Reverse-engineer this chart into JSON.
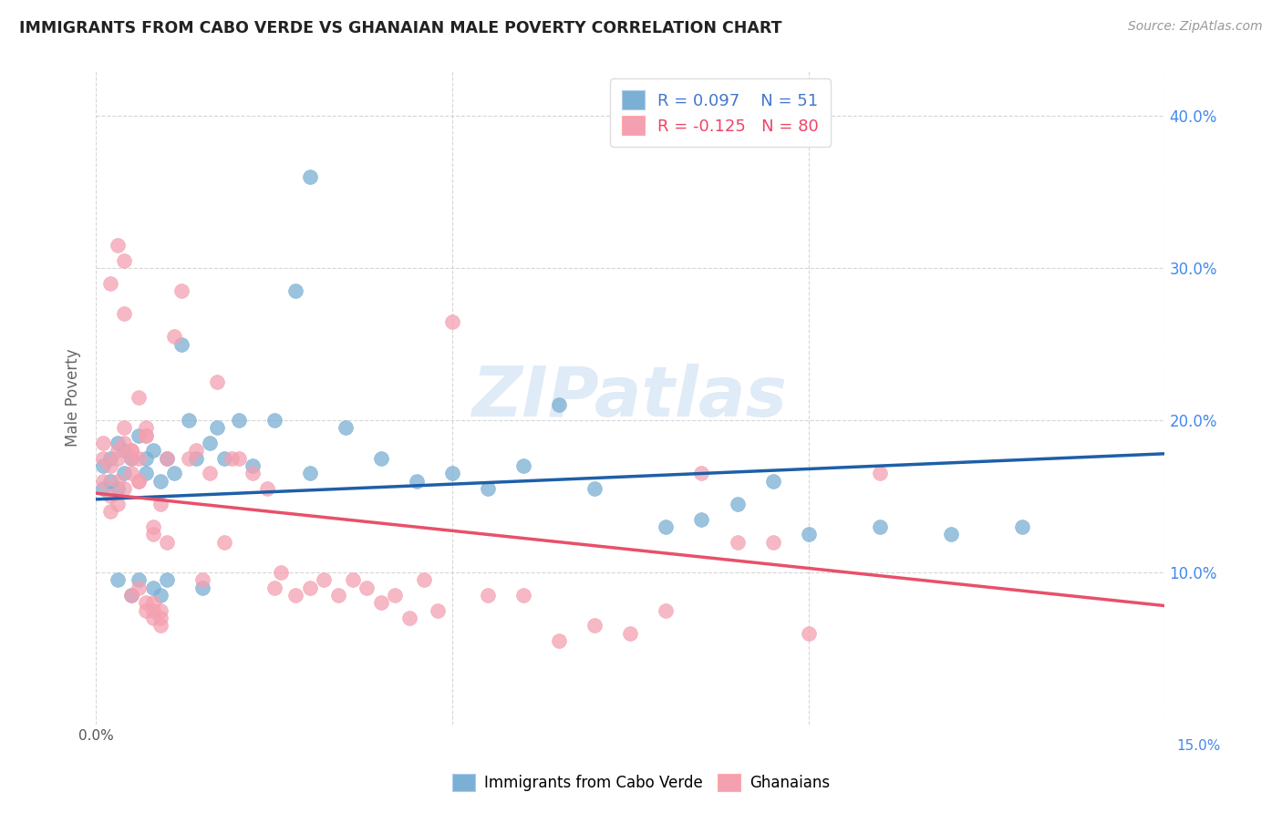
{
  "title": "IMMIGRANTS FROM CABO VERDE VS GHANAIAN MALE POVERTY CORRELATION CHART",
  "source": "Source: ZipAtlas.com",
  "ylabel": "Male Poverty",
  "xlim": [
    0.0,
    0.15
  ],
  "ylim": [
    0.0,
    0.43
  ],
  "R_blue": 0.097,
  "N_blue": 51,
  "R_pink": -0.125,
  "N_pink": 80,
  "color_blue": "#7BAFD4",
  "color_pink": "#F4A0B0",
  "line_color_blue": "#1E5FA8",
  "line_color_pink": "#E8506A",
  "legend_label_blue": "Immigrants from Cabo Verde",
  "legend_label_pink": "Ghanaians",
  "watermark": "ZIPatlas",
  "blue_line_y0": 0.148,
  "blue_line_y1": 0.178,
  "pink_line_y0": 0.152,
  "pink_line_y1": 0.078,
  "blue_scatter_x": [
    0.001,
    0.001,
    0.002,
    0.002,
    0.003,
    0.003,
    0.003,
    0.004,
    0.004,
    0.005,
    0.005,
    0.006,
    0.006,
    0.007,
    0.007,
    0.008,
    0.008,
    0.009,
    0.009,
    0.01,
    0.01,
    0.011,
    0.012,
    0.013,
    0.014,
    0.015,
    0.016,
    0.017,
    0.018,
    0.02,
    0.022,
    0.025,
    0.028,
    0.03,
    0.035,
    0.04,
    0.045,
    0.05,
    0.055,
    0.06,
    0.065,
    0.07,
    0.08,
    0.085,
    0.09,
    0.095,
    0.1,
    0.11,
    0.12,
    0.13,
    0.03
  ],
  "blue_scatter_y": [
    0.155,
    0.17,
    0.16,
    0.175,
    0.185,
    0.155,
    0.095,
    0.165,
    0.18,
    0.175,
    0.085,
    0.19,
    0.095,
    0.175,
    0.165,
    0.18,
    0.09,
    0.085,
    0.16,
    0.175,
    0.095,
    0.165,
    0.25,
    0.2,
    0.175,
    0.09,
    0.185,
    0.195,
    0.175,
    0.2,
    0.17,
    0.2,
    0.285,
    0.36,
    0.195,
    0.175,
    0.16,
    0.165,
    0.155,
    0.17,
    0.21,
    0.155,
    0.13,
    0.135,
    0.145,
    0.16,
    0.125,
    0.13,
    0.125,
    0.13,
    0.165
  ],
  "pink_scatter_x": [
    0.001,
    0.001,
    0.001,
    0.002,
    0.002,
    0.002,
    0.003,
    0.003,
    0.003,
    0.004,
    0.004,
    0.004,
    0.005,
    0.005,
    0.005,
    0.006,
    0.006,
    0.006,
    0.007,
    0.007,
    0.007,
    0.008,
    0.008,
    0.008,
    0.009,
    0.009,
    0.01,
    0.01,
    0.011,
    0.012,
    0.013,
    0.014,
    0.015,
    0.016,
    0.017,
    0.018,
    0.019,
    0.02,
    0.022,
    0.024,
    0.025,
    0.026,
    0.028,
    0.03,
    0.032,
    0.034,
    0.036,
    0.038,
    0.04,
    0.042,
    0.044,
    0.046,
    0.048,
    0.05,
    0.055,
    0.06,
    0.065,
    0.07,
    0.075,
    0.08,
    0.085,
    0.09,
    0.095,
    0.1,
    0.11,
    0.005,
    0.006,
    0.007,
    0.008,
    0.009,
    0.003,
    0.004,
    0.002,
    0.003,
    0.004,
    0.005,
    0.006,
    0.007,
    0.008,
    0.009
  ],
  "pink_scatter_y": [
    0.185,
    0.175,
    0.16,
    0.17,
    0.15,
    0.14,
    0.175,
    0.16,
    0.145,
    0.185,
    0.195,
    0.155,
    0.175,
    0.165,
    0.085,
    0.215,
    0.175,
    0.09,
    0.19,
    0.195,
    0.08,
    0.13,
    0.125,
    0.08,
    0.145,
    0.075,
    0.12,
    0.175,
    0.255,
    0.285,
    0.175,
    0.18,
    0.095,
    0.165,
    0.225,
    0.12,
    0.175,
    0.175,
    0.165,
    0.155,
    0.09,
    0.1,
    0.085,
    0.09,
    0.095,
    0.085,
    0.095,
    0.09,
    0.08,
    0.085,
    0.07,
    0.095,
    0.075,
    0.265,
    0.085,
    0.085,
    0.055,
    0.065,
    0.06,
    0.075,
    0.165,
    0.12,
    0.12,
    0.06,
    0.165,
    0.18,
    0.16,
    0.19,
    0.075,
    0.07,
    0.315,
    0.305,
    0.29,
    0.18,
    0.27,
    0.18,
    0.16,
    0.075,
    0.07,
    0.065
  ]
}
